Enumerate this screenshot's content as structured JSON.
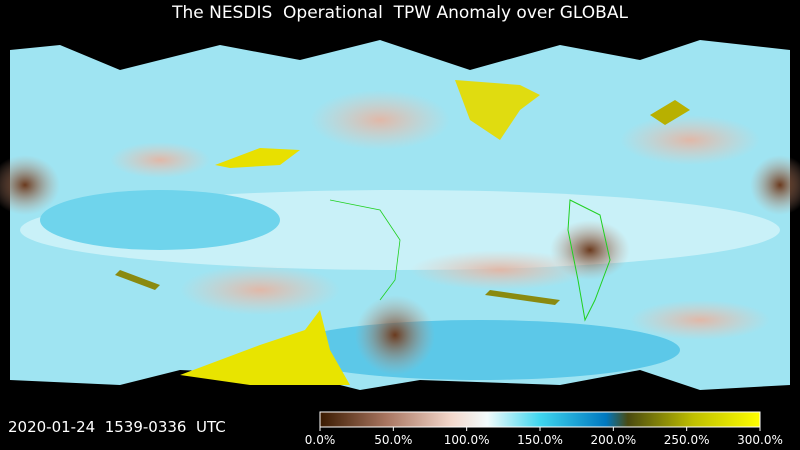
{
  "header": {
    "title": "The NESDIS  Operational  TPW Anomaly over GLOBAL"
  },
  "footer": {
    "timestamp": "2020-01-24  1539-0336  UTC"
  },
  "colorbar": {
    "lim": [
      0,
      300
    ],
    "ticks": [
      {
        "value": 0,
        "label": "0.0%"
      },
      {
        "value": 50,
        "label": "50.0%"
      },
      {
        "value": 100,
        "label": "100.0%"
      },
      {
        "value": 150,
        "label": "150.0%"
      },
      {
        "value": 200,
        "label": "200.0%"
      },
      {
        "value": 250,
        "label": "250.0%"
      },
      {
        "value": 300,
        "label": "300.0%"
      }
    ]
  }
}
